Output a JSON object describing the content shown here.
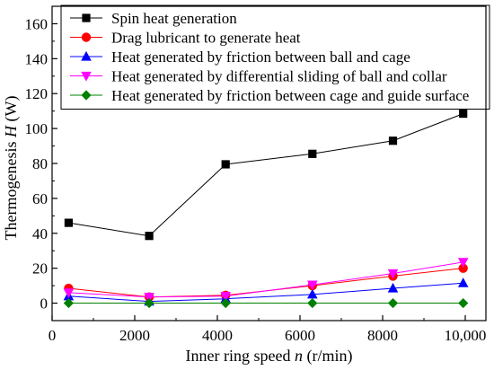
{
  "chart_data": {
    "type": "line",
    "xlabel": "Inner ring speed n (r/min)",
    "xlabel_parts": {
      "pre": "Inner ring speed ",
      "var": "n",
      "post": " (r/min)"
    },
    "ylabel": "Thermogenesis H (W)",
    "ylabel_parts": {
      "pre": "Thermogenesis ",
      "var": "H",
      "post": " (W)"
    },
    "xlim": [
      0,
      10500
    ],
    "ylim": [
      -10,
      170
    ],
    "x_ticks": [
      0,
      2000,
      4000,
      6000,
      8000,
      10000
    ],
    "x_tick_labels": [
      "0",
      "2000",
      "4000",
      "6000",
      "8000",
      "10,000"
    ],
    "y_ticks": [
      0,
      20,
      40,
      60,
      80,
      100,
      120,
      140,
      160
    ],
    "y_tick_labels": [
      "0",
      "20",
      "40",
      "60",
      "80",
      "100",
      "120",
      "140",
      "160"
    ],
    "grid": false,
    "legend_position": "top-left",
    "x": [
      400,
      2350,
      4200,
      6300,
      8250,
      9950
    ],
    "series": [
      {
        "name": "Spin heat generation",
        "values": [
          46,
          38.5,
          79.5,
          85.5,
          93,
          108.5
        ],
        "color": "#000000",
        "marker": "square"
      },
      {
        "name": "Drag lubricant to generate heat",
        "values": [
          8.5,
          3.5,
          4.5,
          10,
          15.5,
          20
        ],
        "color": "#ff0000",
        "marker": "circle"
      },
      {
        "name": "Heat generated by friction between ball and cage",
        "values": [
          4,
          1,
          2.5,
          5,
          8.5,
          11.5
        ],
        "color": "#0000ff",
        "marker": "triangle-up"
      },
      {
        "name": "Heat generated by differential sliding of ball and collar",
        "values": [
          6,
          3.5,
          4,
          10.5,
          17,
          23.5
        ],
        "color": "#ff00ff",
        "marker": "triangle-down"
      },
      {
        "name": "Heat generated by friction between cage and guide surface",
        "values": [
          0,
          0,
          0,
          0,
          0,
          0
        ],
        "color": "#008000",
        "marker": "diamond"
      }
    ]
  }
}
